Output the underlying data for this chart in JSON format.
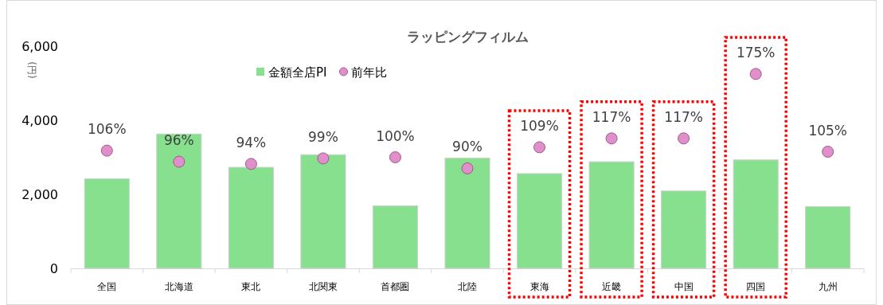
{
  "chart_data": {
    "type": "bar",
    "title": "ラッピングフィルム",
    "ylabel": "(円)",
    "categories": [
      "全国",
      "北海道",
      "東北",
      "北関東",
      "首都圏",
      "北陸",
      "東海",
      "近畿",
      "中国",
      "四国",
      "九州"
    ],
    "ylim": [
      0,
      6000
    ],
    "yticks": [
      0,
      {
        "value": 2000,
        "label": "2,000"
      },
      {
        "value": 4000,
        "label": "4,000"
      },
      {
        "value": 6000,
        "label": "6,000"
      }
    ],
    "legend": "top",
    "marker": "circle",
    "series": [
      {
        "name": "金額全店PI",
        "color": "#86e08e",
        "values": [
          2420,
          3630,
          2730,
          3070,
          1690,
          2980,
          2560,
          2880,
          2090,
          2930,
          1670
        ]
      },
      {
        "name": "前年比",
        "type": "scatter",
        "axis": "y2",
        "color": "#e08fcb",
        "values": [
          106,
          96,
          94,
          99,
          100,
          90,
          109,
          117,
          117,
          175,
          105
        ],
        "value_labels": [
          "106%",
          "96%",
          "94%",
          "99%",
          "100%",
          "90%",
          "109%",
          "117%",
          "117%",
          "175%",
          "105%"
        ]
      }
    ]
  }
}
